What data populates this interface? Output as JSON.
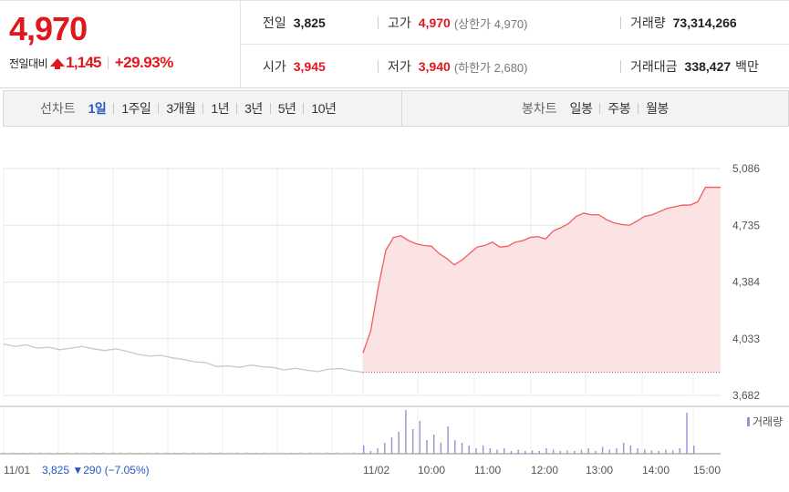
{
  "summary": {
    "price": "4,970",
    "change_label": "전일대비",
    "change_value": "1,145",
    "change_pct": "+29.93%",
    "prev_close_label": "전일",
    "prev_close": "3,825",
    "open_label": "시가",
    "open": "3,945",
    "high_label": "고가",
    "high": "4,970",
    "upper_limit": "(상한가 4,970)",
    "low_label": "저가",
    "low": "3,940",
    "lower_limit": "(하한가 2,680)",
    "volume_label": "거래량",
    "volume": "73,314,266",
    "turnover_label": "거래대금",
    "turnover": "338,427",
    "turnover_unit": "백만"
  },
  "colors": {
    "up": "#e0171c",
    "down": "#2458c5",
    "line_today": "#f45b5b",
    "fill_today": "#fbe3e3",
    "line_prev": "#c9c9c9",
    "volume": "#9a8fd0",
    "volume_prev": "#cfcfcf"
  },
  "tabs": {
    "line_label": "선차트",
    "line_items": [
      "1일",
      "1주일",
      "3개월",
      "1년",
      "3년",
      "5년",
      "10년"
    ],
    "line_active": 0,
    "candle_label": "봉차트",
    "candle_items": [
      "일봉",
      "주봉",
      "월봉"
    ]
  },
  "chart_data": {
    "type": "line",
    "ylim": [
      3682,
      5086
    ],
    "y_ticks": [
      "5,086",
      "4,735",
      "4,384",
      "4,033",
      "3,682"
    ],
    "grid": true,
    "x_labels": [
      "11/01",
      "11/02",
      "10:00",
      "11:00",
      "12:00",
      "13:00",
      "14:00",
      "15:00"
    ],
    "prev_day_info": "3,825 ▼290 (−7.05%)",
    "volume_legend": "거래량",
    "reference_line": 3825,
    "series": [
      {
        "name": "11/01",
        "values": [
          4000,
          3985,
          3995,
          3975,
          3980,
          3965,
          3975,
          3985,
          3970,
          3960,
          3970,
          3955,
          3935,
          3925,
          3930,
          3915,
          3905,
          3890,
          3885,
          3860,
          3865,
          3855,
          3870,
          3860,
          3855,
          3840,
          3850,
          3838,
          3830,
          3845,
          3848,
          3835,
          3825
        ]
      },
      {
        "name": "11/02",
        "values": [
          3945,
          4080,
          4350,
          4580,
          4660,
          4670,
          4640,
          4620,
          4610,
          4605,
          4560,
          4530,
          4490,
          4520,
          4560,
          4600,
          4610,
          4630,
          4600,
          4605,
          4630,
          4640,
          4660,
          4665,
          4650,
          4700,
          4720,
          4745,
          4790,
          4810,
          4800,
          4800,
          4770,
          4750,
          4740,
          4735,
          4760,
          4790,
          4800,
          4820,
          4840,
          4850,
          4860,
          4860,
          4880,
          4970,
          4970,
          4970
        ]
      }
    ],
    "volume_values": [
      30,
      10,
      20,
      40,
      60,
      80,
      160,
      90,
      120,
      50,
      70,
      40,
      100,
      50,
      40,
      30,
      20,
      30,
      20,
      15,
      20,
      10,
      15,
      10,
      12,
      10,
      20,
      15,
      10,
      12,
      10,
      15,
      20,
      10,
      25,
      15,
      20,
      40,
      30,
      20,
      15,
      12,
      10,
      15,
      12,
      20,
      150,
      30
    ]
  }
}
